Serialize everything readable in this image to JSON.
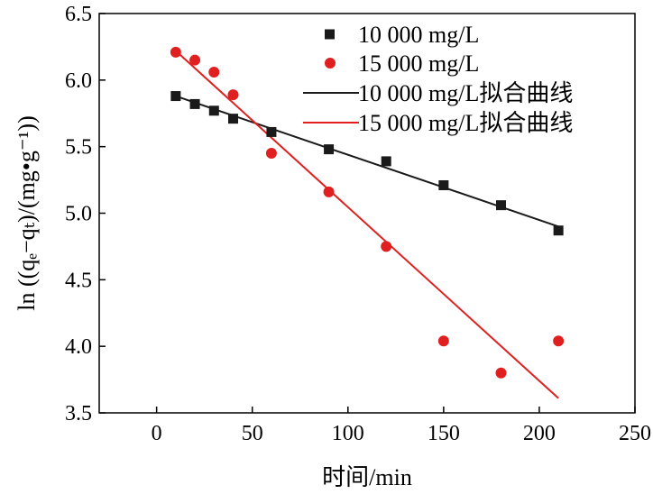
{
  "chart_data": {
    "type": "scatter",
    "xlabel": "时间/min",
    "ylabel": "ln ((qₑ−qₜ)/(mg•g⁻¹))",
    "xlim": [
      -30,
      250
    ],
    "ylim": [
      3.5,
      6.5
    ],
    "xticks": [
      0,
      50,
      100,
      150,
      200,
      250
    ],
    "yticks": [
      3.5,
      4.0,
      4.5,
      5.0,
      5.5,
      6.0,
      6.5
    ],
    "xtick_labels": [
      "0",
      "50",
      "100",
      "150",
      "200",
      "250"
    ],
    "ytick_labels": [
      "3.5",
      "4.0",
      "4.5",
      "5.0",
      "5.5",
      "6.0",
      "6.5"
    ],
    "grid": false,
    "legend": "top-right",
    "series": [
      {
        "name": "10 000 mg/L",
        "marker": "square",
        "color": "#1a1a1a",
        "x": [
          10,
          20,
          30,
          40,
          60,
          90,
          120,
          150,
          180,
          210
        ],
        "y": [
          5.88,
          5.82,
          5.77,
          5.71,
          5.61,
          5.48,
          5.39,
          5.21,
          5.06,
          4.87
        ]
      },
      {
        "name": "15 000 mg/L",
        "marker": "circle",
        "color": "#e02020",
        "x": [
          10,
          20,
          30,
          40,
          60,
          90,
          120,
          150,
          180,
          210
        ],
        "y": [
          6.21,
          6.15,
          6.06,
          5.89,
          5.45,
          5.16,
          4.75,
          4.04,
          3.8,
          4.04
        ]
      },
      {
        "name": "10 000 mg/L拟合曲线",
        "marker": "line",
        "color": "#1a1a1a",
        "x": [
          10,
          210
        ],
        "y": [
          5.88,
          4.9
        ]
      },
      {
        "name": "15 000 mg/L拟合曲线",
        "marker": "line",
        "color": "#e02020",
        "x": [
          10,
          210
        ],
        "y": [
          6.22,
          3.61
        ]
      }
    ]
  }
}
